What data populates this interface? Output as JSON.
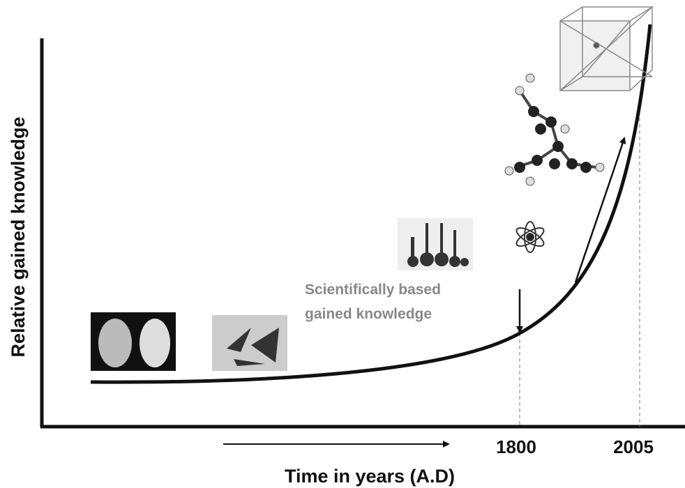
{
  "axes": {
    "y_label": "Relative gained knowledge",
    "x_label": "Time in years (A.D)"
  },
  "x_labels": [
    "1800",
    "2005"
  ],
  "annotation": [
    "Scientifically based",
    "gained knowledge"
  ]
}
